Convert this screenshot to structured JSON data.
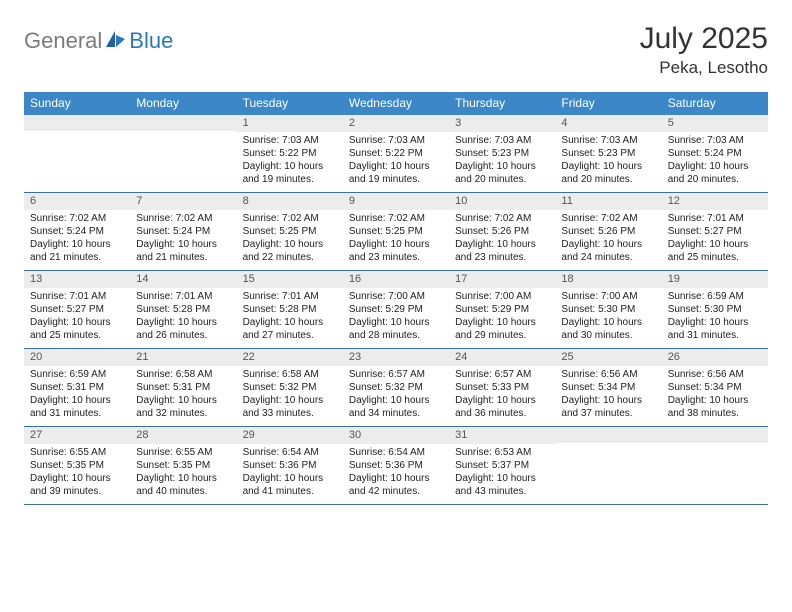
{
  "brand": {
    "part1": "General",
    "part2": "Blue"
  },
  "title": "July 2025",
  "location": "Peka, Lesotho",
  "colors": {
    "header_bg": "#3b87c8",
    "header_text": "#ffffff",
    "daynum_bg": "#ececec",
    "body_text": "#222222",
    "week_divider": "#3b6fa3",
    "logo_gray": "#7b7b7b",
    "logo_blue": "#2a77bb",
    "title_color": "#333333",
    "background": "#ffffff"
  },
  "typography": {
    "title_fontsize": 30,
    "location_fontsize": 17,
    "dow_fontsize": 12,
    "daynum_fontsize": 11,
    "body_fontsize": 10
  },
  "daysOfWeek": [
    "Sunday",
    "Monday",
    "Tuesday",
    "Wednesday",
    "Thursday",
    "Friday",
    "Saturday"
  ],
  "weeks": [
    [
      {
        "n": "",
        "sunrise": "",
        "sunset": "",
        "dl1": "",
        "dl2": ""
      },
      {
        "n": "",
        "sunrise": "",
        "sunset": "",
        "dl1": "",
        "dl2": ""
      },
      {
        "n": "1",
        "sunrise": "Sunrise: 7:03 AM",
        "sunset": "Sunset: 5:22 PM",
        "dl1": "Daylight: 10 hours",
        "dl2": "and 19 minutes."
      },
      {
        "n": "2",
        "sunrise": "Sunrise: 7:03 AM",
        "sunset": "Sunset: 5:22 PM",
        "dl1": "Daylight: 10 hours",
        "dl2": "and 19 minutes."
      },
      {
        "n": "3",
        "sunrise": "Sunrise: 7:03 AM",
        "sunset": "Sunset: 5:23 PM",
        "dl1": "Daylight: 10 hours",
        "dl2": "and 20 minutes."
      },
      {
        "n": "4",
        "sunrise": "Sunrise: 7:03 AM",
        "sunset": "Sunset: 5:23 PM",
        "dl1": "Daylight: 10 hours",
        "dl2": "and 20 minutes."
      },
      {
        "n": "5",
        "sunrise": "Sunrise: 7:03 AM",
        "sunset": "Sunset: 5:24 PM",
        "dl1": "Daylight: 10 hours",
        "dl2": "and 20 minutes."
      }
    ],
    [
      {
        "n": "6",
        "sunrise": "Sunrise: 7:02 AM",
        "sunset": "Sunset: 5:24 PM",
        "dl1": "Daylight: 10 hours",
        "dl2": "and 21 minutes."
      },
      {
        "n": "7",
        "sunrise": "Sunrise: 7:02 AM",
        "sunset": "Sunset: 5:24 PM",
        "dl1": "Daylight: 10 hours",
        "dl2": "and 21 minutes."
      },
      {
        "n": "8",
        "sunrise": "Sunrise: 7:02 AM",
        "sunset": "Sunset: 5:25 PM",
        "dl1": "Daylight: 10 hours",
        "dl2": "and 22 minutes."
      },
      {
        "n": "9",
        "sunrise": "Sunrise: 7:02 AM",
        "sunset": "Sunset: 5:25 PM",
        "dl1": "Daylight: 10 hours",
        "dl2": "and 23 minutes."
      },
      {
        "n": "10",
        "sunrise": "Sunrise: 7:02 AM",
        "sunset": "Sunset: 5:26 PM",
        "dl1": "Daylight: 10 hours",
        "dl2": "and 23 minutes."
      },
      {
        "n": "11",
        "sunrise": "Sunrise: 7:02 AM",
        "sunset": "Sunset: 5:26 PM",
        "dl1": "Daylight: 10 hours",
        "dl2": "and 24 minutes."
      },
      {
        "n": "12",
        "sunrise": "Sunrise: 7:01 AM",
        "sunset": "Sunset: 5:27 PM",
        "dl1": "Daylight: 10 hours",
        "dl2": "and 25 minutes."
      }
    ],
    [
      {
        "n": "13",
        "sunrise": "Sunrise: 7:01 AM",
        "sunset": "Sunset: 5:27 PM",
        "dl1": "Daylight: 10 hours",
        "dl2": "and 25 minutes."
      },
      {
        "n": "14",
        "sunrise": "Sunrise: 7:01 AM",
        "sunset": "Sunset: 5:28 PM",
        "dl1": "Daylight: 10 hours",
        "dl2": "and 26 minutes."
      },
      {
        "n": "15",
        "sunrise": "Sunrise: 7:01 AM",
        "sunset": "Sunset: 5:28 PM",
        "dl1": "Daylight: 10 hours",
        "dl2": "and 27 minutes."
      },
      {
        "n": "16",
        "sunrise": "Sunrise: 7:00 AM",
        "sunset": "Sunset: 5:29 PM",
        "dl1": "Daylight: 10 hours",
        "dl2": "and 28 minutes."
      },
      {
        "n": "17",
        "sunrise": "Sunrise: 7:00 AM",
        "sunset": "Sunset: 5:29 PM",
        "dl1": "Daylight: 10 hours",
        "dl2": "and 29 minutes."
      },
      {
        "n": "18",
        "sunrise": "Sunrise: 7:00 AM",
        "sunset": "Sunset: 5:30 PM",
        "dl1": "Daylight: 10 hours",
        "dl2": "and 30 minutes."
      },
      {
        "n": "19",
        "sunrise": "Sunrise: 6:59 AM",
        "sunset": "Sunset: 5:30 PM",
        "dl1": "Daylight: 10 hours",
        "dl2": "and 31 minutes."
      }
    ],
    [
      {
        "n": "20",
        "sunrise": "Sunrise: 6:59 AM",
        "sunset": "Sunset: 5:31 PM",
        "dl1": "Daylight: 10 hours",
        "dl2": "and 31 minutes."
      },
      {
        "n": "21",
        "sunrise": "Sunrise: 6:58 AM",
        "sunset": "Sunset: 5:31 PM",
        "dl1": "Daylight: 10 hours",
        "dl2": "and 32 minutes."
      },
      {
        "n": "22",
        "sunrise": "Sunrise: 6:58 AM",
        "sunset": "Sunset: 5:32 PM",
        "dl1": "Daylight: 10 hours",
        "dl2": "and 33 minutes."
      },
      {
        "n": "23",
        "sunrise": "Sunrise: 6:57 AM",
        "sunset": "Sunset: 5:32 PM",
        "dl1": "Daylight: 10 hours",
        "dl2": "and 34 minutes."
      },
      {
        "n": "24",
        "sunrise": "Sunrise: 6:57 AM",
        "sunset": "Sunset: 5:33 PM",
        "dl1": "Daylight: 10 hours",
        "dl2": "and 36 minutes."
      },
      {
        "n": "25",
        "sunrise": "Sunrise: 6:56 AM",
        "sunset": "Sunset: 5:34 PM",
        "dl1": "Daylight: 10 hours",
        "dl2": "and 37 minutes."
      },
      {
        "n": "26",
        "sunrise": "Sunrise: 6:56 AM",
        "sunset": "Sunset: 5:34 PM",
        "dl1": "Daylight: 10 hours",
        "dl2": "and 38 minutes."
      }
    ],
    [
      {
        "n": "27",
        "sunrise": "Sunrise: 6:55 AM",
        "sunset": "Sunset: 5:35 PM",
        "dl1": "Daylight: 10 hours",
        "dl2": "and 39 minutes."
      },
      {
        "n": "28",
        "sunrise": "Sunrise: 6:55 AM",
        "sunset": "Sunset: 5:35 PM",
        "dl1": "Daylight: 10 hours",
        "dl2": "and 40 minutes."
      },
      {
        "n": "29",
        "sunrise": "Sunrise: 6:54 AM",
        "sunset": "Sunset: 5:36 PM",
        "dl1": "Daylight: 10 hours",
        "dl2": "and 41 minutes."
      },
      {
        "n": "30",
        "sunrise": "Sunrise: 6:54 AM",
        "sunset": "Sunset: 5:36 PM",
        "dl1": "Daylight: 10 hours",
        "dl2": "and 42 minutes."
      },
      {
        "n": "31",
        "sunrise": "Sunrise: 6:53 AM",
        "sunset": "Sunset: 5:37 PM",
        "dl1": "Daylight: 10 hours",
        "dl2": "and 43 minutes."
      },
      {
        "n": "",
        "sunrise": "",
        "sunset": "",
        "dl1": "",
        "dl2": ""
      },
      {
        "n": "",
        "sunrise": "",
        "sunset": "",
        "dl1": "",
        "dl2": ""
      }
    ]
  ]
}
